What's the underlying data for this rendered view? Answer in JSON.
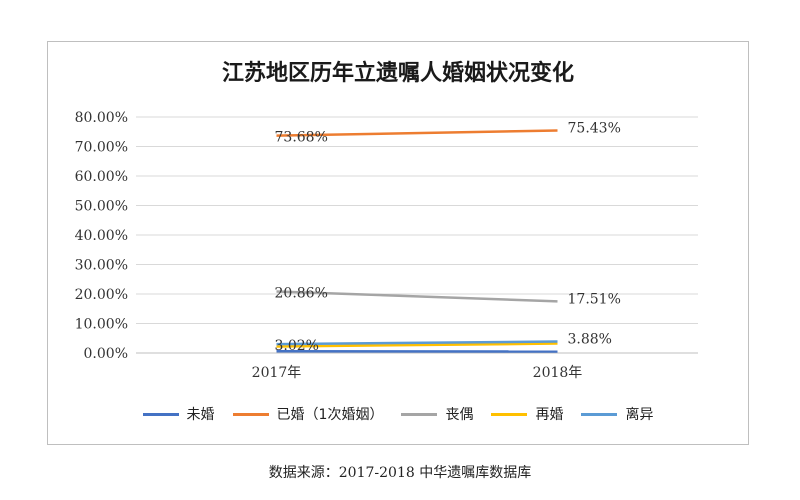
{
  "chart_data": {
    "type": "line",
    "title": "江苏地区历年立遗嘱人婚姻状况变化",
    "categories": [
      "2017年",
      "2018年"
    ],
    "ylim": [
      0,
      80
    ],
    "yticks": [
      "0.00%",
      "10.00%",
      "20.00%",
      "30.00%",
      "40.00%",
      "50.00%",
      "60.00%",
      "70.00%",
      "80.00%"
    ],
    "grid": true,
    "legend_position": "bottom",
    "series": [
      {
        "name": "未婚",
        "color": "#4472C4",
        "values": [
          0.6,
          0.5
        ],
        "labels": [
          "",
          ""
        ]
      },
      {
        "name": "已婚（1次婚姻）",
        "color": "#ED7D31",
        "values": [
          73.68,
          75.43
        ],
        "labels": [
          "73.68%",
          "75.43%"
        ]
      },
      {
        "name": "丧偶",
        "color": "#A5A5A5",
        "values": [
          20.86,
          17.51
        ],
        "labels": [
          "20.86%",
          "17.51%"
        ]
      },
      {
        "name": "再婚",
        "color": "#FFC000",
        "values": [
          2.2,
          3.2
        ],
        "labels": [
          "",
          ""
        ]
      },
      {
        "name": "离异",
        "color": "#5B9BD5",
        "values": [
          3.02,
          3.88
        ],
        "labels": [
          "3.02%",
          "3.88%"
        ]
      }
    ]
  },
  "source_note": "数据来源：2017-2018 中华遗嘱库数据库"
}
